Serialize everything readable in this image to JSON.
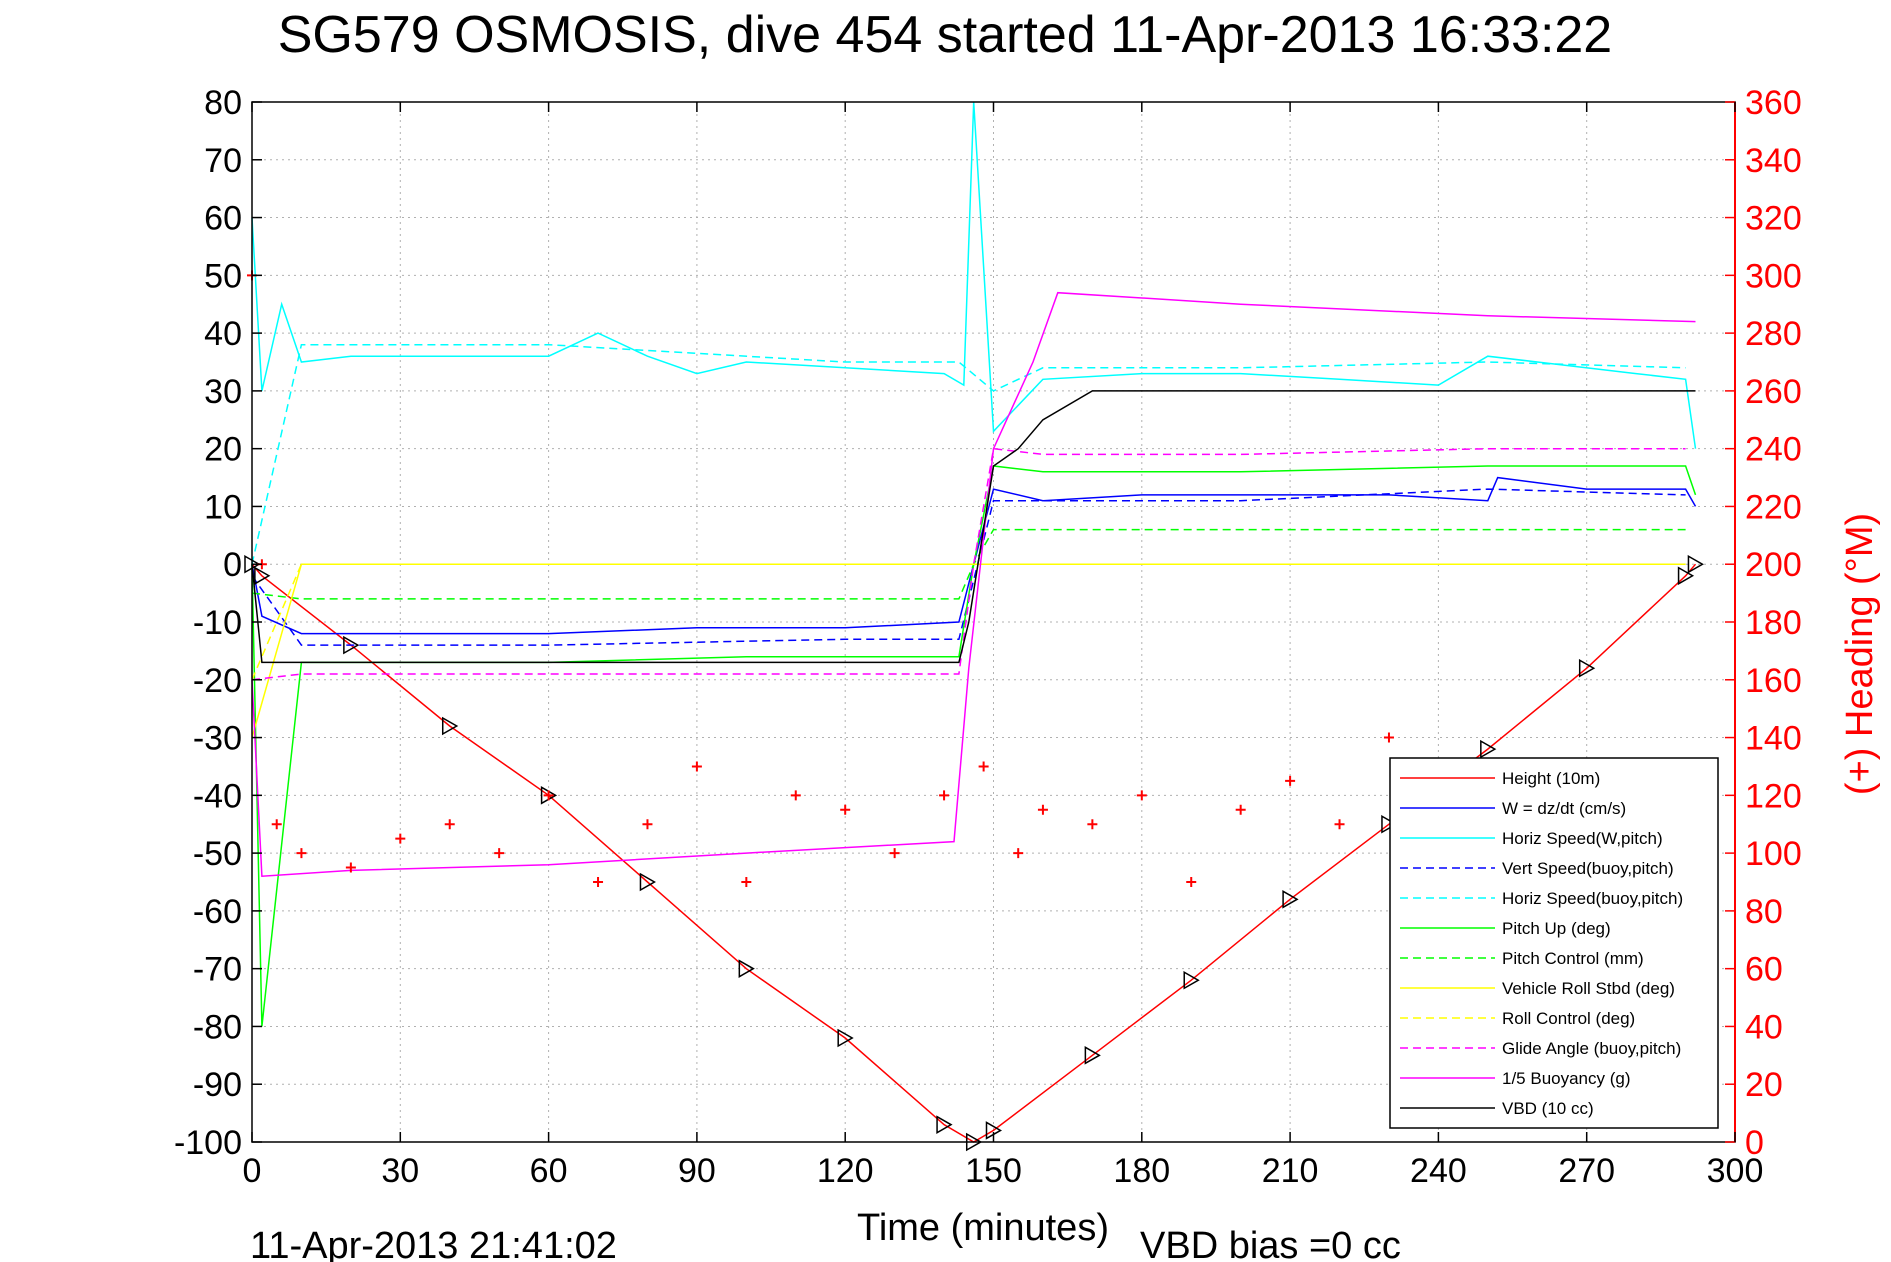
{
  "chart_data": {
    "type": "line",
    "title": "SG579 OSMOSIS, dive 454 started 11-Apr-2013 16:33:22",
    "xlabel": "Time (minutes)",
    "ylabel_right": "(+) Heading (°M)",
    "footer_left": "11-Apr-2013 21:41:02",
    "footer_right": "VBD bias =0 cc",
    "xlim": [
      0,
      300
    ],
    "ylim_left": [
      -100,
      80
    ],
    "ylim_right": [
      0,
      360
    ],
    "x_ticks": [
      "0",
      "30",
      "60",
      "90",
      "120",
      "150",
      "180",
      "210",
      "240",
      "270",
      "300"
    ],
    "y_ticks_left": [
      "80",
      "70",
      "60",
      "50",
      "40",
      "30",
      "20",
      "10",
      "0",
      "-10",
      "-20",
      "-30",
      "-40",
      "-50",
      "-60",
      "-70",
      "-80",
      "-90",
      "-100"
    ],
    "y_ticks_right": [
      "360",
      "340",
      "320",
      "300",
      "280",
      "260",
      "240",
      "220",
      "200",
      "180",
      "160",
      "140",
      "120",
      "100",
      "80",
      "60",
      "40",
      "20",
      "0"
    ],
    "grid": true,
    "legend_position": "lower-right",
    "colors": {
      "height": "#ff0000",
      "w": "#0000ff",
      "horiz_speed": "#00ffff",
      "pitch": "#00ff00",
      "roll": "#ffff00",
      "glide": "#ff00ff",
      "buoyancy": "#ff00ff",
      "vbd": "#000000",
      "heading": "#ff0000"
    },
    "series": [
      {
        "name": "Height (10m)",
        "color": "#ff0000",
        "style": "solid",
        "x": [
          0,
          2,
          20,
          40,
          60,
          80,
          100,
          120,
          140,
          146,
          150,
          170,
          190,
          210,
          230,
          250,
          270,
          290,
          292
        ],
        "y": [
          0,
          -2,
          -14,
          -28,
          -40,
          -55,
          -70,
          -82,
          -97,
          -100,
          -98,
          -85,
          -72,
          -58,
          -45,
          -32,
          -18,
          -2,
          0
        ]
      },
      {
        "name": "W = dz/dt (cm/s)",
        "color": "#0000ff",
        "style": "solid",
        "x": [
          0,
          2,
          10,
          30,
          60,
          90,
          120,
          143,
          146,
          150,
          160,
          180,
          200,
          230,
          250,
          252,
          270,
          290,
          292
        ],
        "y": [
          0,
          -9,
          -12,
          -12,
          -12,
          -11,
          -11,
          -10,
          0,
          13,
          11,
          12,
          12,
          12,
          11,
          15,
          13,
          13,
          10
        ]
      },
      {
        "name": "Horiz Speed(W,pitch)",
        "color": "#00ffff",
        "style": "solid",
        "x": [
          0,
          2,
          6,
          10,
          20,
          40,
          60,
          70,
          80,
          90,
          100,
          120,
          140,
          144,
          146,
          150,
          160,
          180,
          200,
          220,
          240,
          250,
          260,
          280,
          290,
          292
        ],
        "y": [
          60,
          30,
          45,
          35,
          36,
          36,
          36,
          40,
          36,
          33,
          35,
          34,
          33,
          31,
          80,
          23,
          32,
          33,
          33,
          32,
          31,
          36,
          35,
          33,
          32,
          20
        ]
      },
      {
        "name": "Vert Speed(buoy,pitch)",
        "color": "#0000ff",
        "style": "dashed",
        "x": [
          0,
          10,
          60,
          120,
          143,
          150,
          160,
          200,
          250,
          290
        ],
        "y": [
          -2,
          -14,
          -14,
          -13,
          -13,
          11,
          11,
          11,
          13,
          12
        ]
      },
      {
        "name": "Horiz Speed(buoy,pitch)",
        "color": "#00ffff",
        "style": "dashed",
        "x": [
          0,
          10,
          60,
          120,
          143,
          150,
          160,
          200,
          250,
          290
        ],
        "y": [
          0,
          38,
          38,
          35,
          35,
          30,
          34,
          34,
          35,
          34
        ]
      },
      {
        "name": "Pitch Up (deg)",
        "color": "#00ff00",
        "style": "solid",
        "x": [
          0,
          2,
          10,
          60,
          100,
          143,
          146,
          150,
          160,
          200,
          250,
          290,
          292
        ],
        "y": [
          0,
          -80,
          -17,
          -17,
          -16,
          -16,
          0,
          17,
          16,
          16,
          17,
          17,
          12
        ]
      },
      {
        "name": "Pitch Control (mm)",
        "color": "#00ff00",
        "style": "dashed",
        "x": [
          0,
          10,
          143,
          146,
          150,
          200,
          290
        ],
        "y": [
          -5,
          -6,
          -6,
          0,
          6,
          6,
          6
        ]
      },
      {
        "name": "Vehicle Roll Stbd (deg)",
        "color": "#ffff00",
        "style": "solid",
        "x": [
          0,
          10,
          70,
          140,
          150,
          200,
          250,
          290
        ],
        "y": [
          -30,
          0,
          0,
          0,
          0,
          0,
          0,
          0
        ]
      },
      {
        "name": "Roll Control (deg)",
        "color": "#ffff00",
        "style": "dashed",
        "x": [
          0,
          10,
          70,
          140,
          150,
          200,
          250,
          290
        ],
        "y": [
          -20,
          0,
          0,
          0,
          0,
          0,
          0,
          0
        ]
      },
      {
        "name": "Glide Angle (buoy,pitch)",
        "color": "#ff00ff",
        "style": "dashed",
        "x": [
          0,
          10,
          60,
          143,
          146,
          150,
          160,
          200,
          250,
          290
        ],
        "y": [
          -20,
          -19,
          -19,
          -19,
          0,
          20,
          19,
          19,
          20,
          20
        ]
      },
      {
        "name": "1/5 Buoyancy (g)",
        "color": "#ff00ff",
        "style": "solid",
        "x": [
          0,
          2,
          20,
          60,
          100,
          142,
          145,
          150,
          158,
          163,
          200,
          250,
          292
        ],
        "y": [
          -20,
          -54,
          -53,
          -52,
          -50,
          -48,
          -18,
          20,
          35,
          47,
          45,
          43,
          42
        ]
      },
      {
        "name": "VBD (10 cc)",
        "color": "#000000",
        "style": "solid",
        "x": [
          0,
          2,
          143,
          145,
          150,
          155,
          160,
          170,
          292
        ],
        "y": [
          0,
          -17,
          -17,
          -10,
          17,
          20,
          25,
          30,
          30
        ]
      }
    ],
    "heading_series": {
      "name": "(+) Heading",
      "color": "#ff0000",
      "x": [
        0,
        2,
        5,
        10,
        20,
        30,
        40,
        50,
        60,
        70,
        80,
        90,
        100,
        110,
        120,
        130,
        140,
        148,
        155,
        160,
        170,
        180,
        190,
        200,
        210,
        220,
        230,
        240,
        250,
        260,
        270,
        280,
        290
      ],
      "y": [
        300,
        200,
        110,
        100,
        95,
        105,
        110,
        100,
        120,
        90,
        110,
        130,
        90,
        120,
        115,
        100,
        120,
        130,
        100,
        115,
        110,
        120,
        90,
        115,
        125,
        110,
        140,
        115,
        125,
        120,
        110,
        115,
        130
      ]
    }
  }
}
